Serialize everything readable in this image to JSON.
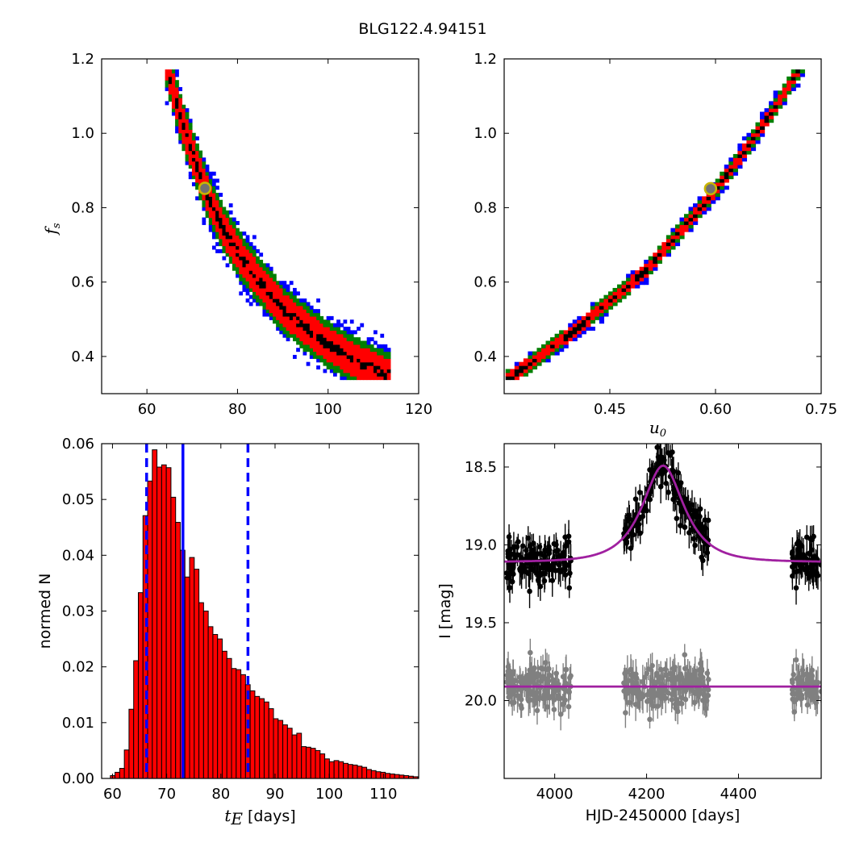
{
  "figure": {
    "title": "BLG122.4.94151"
  },
  "colors": {
    "one_sigma": "#000000",
    "two_sigma": "#ff0000",
    "three_sigma": "#007f00",
    "four_sigma": "#0000ff",
    "marker_edge": "#c8b400",
    "marker_face": "#707070",
    "hist_bar": "#ff0000",
    "hist_edge": "#000000",
    "median_line": "#0000ff",
    "model_line": "#a020a0",
    "data_main": "#000000",
    "data_baseline": "#808080"
  },
  "chart_data": [
    {
      "id": "fs_vs_tE",
      "type": "heatmap",
      "xlabel": "",
      "ylabel": "f",
      "ylabel_sub": "s",
      "xlim": [
        50,
        120
      ],
      "ylim": [
        0.3,
        1.2
      ],
      "xticks": [
        "60",
        "80",
        "100",
        "120"
      ],
      "xtick_values": [
        60,
        80,
        100,
        120
      ],
      "yticks": [
        "0.4",
        "0.6",
        "0.8",
        "1.0",
        "1.2"
      ],
      "ytick_values": [
        0.4,
        0.6,
        0.8,
        1.0,
        1.2
      ],
      "ridge": [
        [
          64,
          1.18
        ],
        [
          67,
          1.04
        ],
        [
          70,
          0.93
        ],
        [
          73,
          0.83
        ],
        [
          76,
          0.75
        ],
        [
          80,
          0.67
        ],
        [
          85,
          0.59
        ],
        [
          90,
          0.52
        ],
        [
          95,
          0.47
        ],
        [
          100,
          0.425
        ],
        [
          105,
          0.39
        ],
        [
          110,
          0.36
        ],
        [
          113,
          0.345
        ]
      ],
      "band_halfwidth": {
        "one_sigma": 0.012,
        "two_sigma": 0.045,
        "three_sigma": 0.062,
        "four_sigma": 0.078
      },
      "best_fit": [
        72.8,
        0.852
      ]
    },
    {
      "id": "fs_vs_u0",
      "type": "heatmap",
      "xlabel": "u",
      "xlabel_sub": "0",
      "ylabel": "",
      "xlim": [
        0.3,
        0.75
      ],
      "ylim": [
        0.3,
        1.2
      ],
      "xticks": [
        "0.45",
        "0.60",
        "0.75"
      ],
      "xtick_values": [
        0.45,
        0.6,
        0.75
      ],
      "yticks": [
        "0.4",
        "0.6",
        "0.8",
        "1.0",
        "1.2"
      ],
      "ytick_values": [
        0.4,
        0.6,
        0.8,
        1.0,
        1.2
      ],
      "ridge": [
        [
          0.302,
          0.335
        ],
        [
          0.35,
          0.4
        ],
        [
          0.4,
          0.47
        ],
        [
          0.45,
          0.55
        ],
        [
          0.5,
          0.63
        ],
        [
          0.55,
          0.74
        ],
        [
          0.6,
          0.85
        ],
        [
          0.65,
          0.98
        ],
        [
          0.69,
          1.09
        ],
        [
          0.72,
          1.18
        ]
      ],
      "band_halfwidth": {
        "one_sigma": 0.006,
        "two_sigma": 0.016,
        "three_sigma": 0.022,
        "four_sigma": 0.028
      },
      "best_fit": [
        0.593,
        0.851
      ]
    },
    {
      "id": "tE_histogram",
      "type": "bar",
      "xlabel": "t",
      "xlabel_sub": "E",
      "xlabel_suffix": " [days]",
      "ylabel": "normed N",
      "xlim": [
        58,
        116.5
      ],
      "ylim": [
        0,
        0.06
      ],
      "xticks": [
        "60",
        "70",
        "80",
        "90",
        "100",
        "110"
      ],
      "xtick_values": [
        60,
        70,
        80,
        90,
        100,
        110
      ],
      "yticks": [
        "0.00",
        "0.01",
        "0.02",
        "0.03",
        "0.04",
        "0.05",
        "0.06"
      ],
      "ytick_values": [
        0,
        0.01,
        0.02,
        0.03,
        0.04,
        0.05,
        0.06
      ],
      "bin_start": 58.75,
      "bin_width": 0.86,
      "values": [
        0.0,
        0.0005,
        0.0011,
        0.0018,
        0.0051,
        0.0124,
        0.0211,
        0.0333,
        0.0471,
        0.0533,
        0.0589,
        0.0558,
        0.0562,
        0.0557,
        0.0504,
        0.0459,
        0.0409,
        0.0361,
        0.0396,
        0.0375,
        0.0315,
        0.03,
        0.0272,
        0.0258,
        0.025,
        0.0228,
        0.0215,
        0.0197,
        0.0195,
        0.0186,
        0.0168,
        0.0157,
        0.0147,
        0.0143,
        0.0137,
        0.0125,
        0.0107,
        0.0104,
        0.0096,
        0.009,
        0.0078,
        0.0081,
        0.0057,
        0.0056,
        0.0054,
        0.005,
        0.0044,
        0.0035,
        0.003,
        0.0032,
        0.003,
        0.0027,
        0.0025,
        0.0024,
        0.0022,
        0.002,
        0.0016,
        0.0014,
        0.0012,
        0.0011,
        0.0009,
        0.0008,
        0.0007,
        0.0006,
        0.0005,
        0.0004,
        0.0003,
        0.0002
      ],
      "median": 73.0,
      "sigma_lines": [
        66.3,
        85.0
      ]
    },
    {
      "id": "light_curve",
      "type": "scatter",
      "xlabel": "HJD-2450000 [days]",
      "ylabel": "I [mag]",
      "xlim": [
        3890,
        4580
      ],
      "ylim": [
        20.5,
        18.35
      ],
      "y_inverted": true,
      "xticks": [
        "4000",
        "4200",
        "4400"
      ],
      "xtick_values": [
        4000,
        4200,
        4400
      ],
      "yticks": [
        "18.5",
        "19.0",
        "19.5",
        "20.0"
      ],
      "ytick_values": [
        18.5,
        19.0,
        19.5,
        20.0
      ],
      "seasons": [
        [
          3890,
          4035
        ],
        [
          4150,
          4335
        ],
        [
          4510,
          4580
        ]
      ],
      "event": {
        "t0": 4236,
        "tE": 73.0,
        "u0": 0.593,
        "fs": 0.852,
        "baseline_mag": 19.11
      },
      "baseline_series": {
        "level": 19.91
      },
      "offset_note": ""
    }
  ]
}
